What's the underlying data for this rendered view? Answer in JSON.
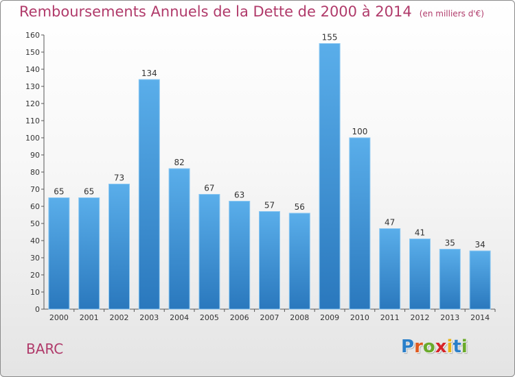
{
  "title": "Remboursements Annuels de la Dette de 2000 à 2014",
  "subtitle": "(en milliers d'€)",
  "town": "BARC",
  "logo": {
    "letters": [
      "P",
      "r",
      "o",
      "x",
      "i",
      "t",
      "i"
    ],
    "colors": [
      "#2a7fc9",
      "#e05a1f",
      "#6aaa2a",
      "#d6252a",
      "#e8b418",
      "#2a7fc9",
      "#6aaa2a"
    ]
  },
  "colors": {
    "bar_top": "#5aaeea",
    "bar_bottom": "#2a78bd",
    "title": "#b03a6a"
  },
  "chart_data": {
    "type": "bar",
    "categories": [
      "2000",
      "2001",
      "2002",
      "2003",
      "2004",
      "2005",
      "2006",
      "2007",
      "2008",
      "2009",
      "2010",
      "2011",
      "2012",
      "2013",
      "2014"
    ],
    "values": [
      65,
      65,
      73,
      134,
      82,
      67,
      63,
      57,
      56,
      155,
      100,
      47,
      41,
      35,
      34
    ],
    "ylim": [
      0,
      160
    ],
    "yticks": [
      0,
      10,
      20,
      30,
      40,
      50,
      60,
      70,
      80,
      90,
      100,
      110,
      120,
      130,
      140,
      150,
      160
    ],
    "grid": false,
    "data_labels": true
  }
}
